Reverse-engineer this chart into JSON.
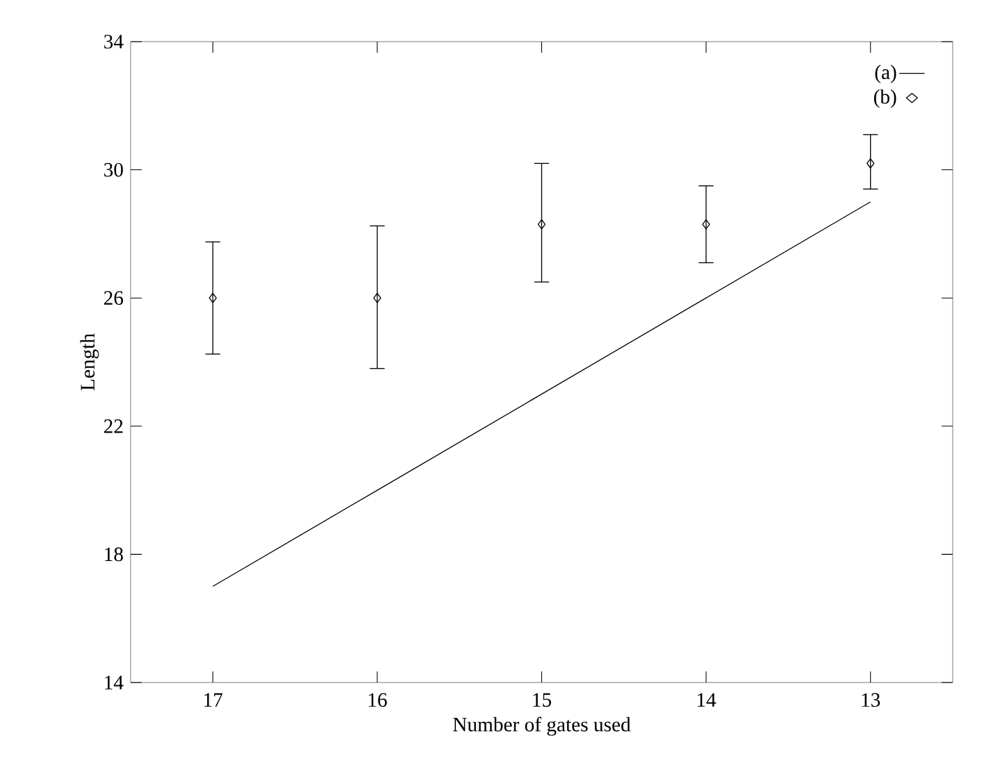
{
  "chart_data": {
    "type": "line",
    "xlabel": "Number of gates used",
    "ylabel": "Length",
    "x": [
      17,
      16,
      15,
      14,
      13
    ],
    "xlim": [
      17.5,
      12.5
    ],
    "xticks": [
      17,
      16,
      15,
      14,
      13
    ],
    "ylim": [
      14,
      34
    ],
    "yticks": [
      14,
      18,
      22,
      26,
      30,
      34
    ],
    "grid": false,
    "legend": "top right",
    "series": [
      {
        "name": "(a)",
        "color": "#000000",
        "line_style": "solid",
        "values": [
          17,
          20,
          23,
          26,
          29
        ]
      },
      {
        "name": "(b)",
        "type": "scatter",
        "color": "#000000",
        "marker": "diamond",
        "values": [
          26.0,
          26.0,
          28.3,
          28.3,
          30.2
        ],
        "errors": [
          [
            24.25,
            27.75
          ],
          [
            23.8,
            28.25
          ],
          [
            26.5,
            30.2
          ],
          [
            27.1,
            29.5
          ],
          [
            29.4,
            31.1
          ]
        ]
      }
    ]
  }
}
